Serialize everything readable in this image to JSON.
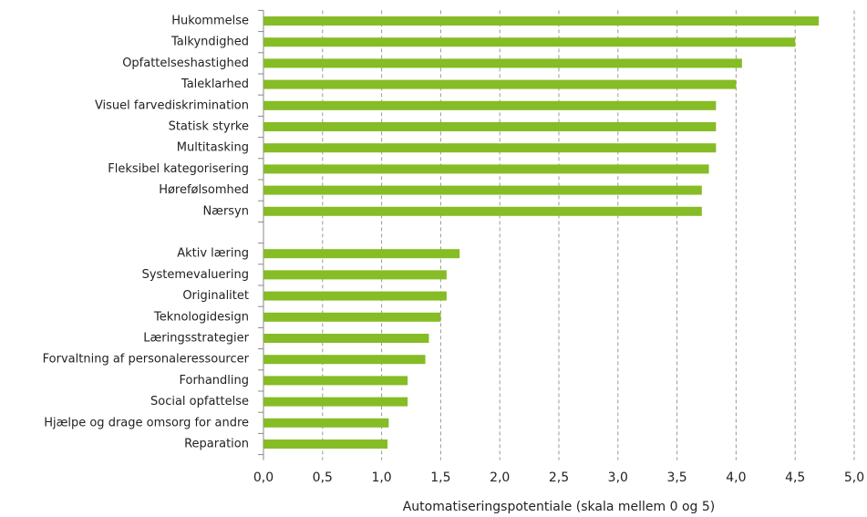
{
  "chart_data": {
    "type": "barh",
    "categories": [
      "Hukommelse",
      "Talkyndighed",
      "Opfattelseshastighed",
      "Taleklarhed",
      "Visuel farvediskrimination",
      "Statisk styrke",
      "Multitasking",
      "Fleksibel kategorisering",
      "Hørefølsomhed",
      "Nærsyn",
      null,
      "Aktiv læring",
      "Systemevaluering",
      "Originalitet",
      "Teknologidesign",
      "Læringsstrategier",
      "Forvaltning af personaleressourcer",
      "Forhandling",
      "Social opfattelse",
      "Hjælpe og drage omsorg for andre",
      "Reparation"
    ],
    "values": [
      4.7,
      4.5,
      4.05,
      4.0,
      3.83,
      3.83,
      3.83,
      3.77,
      3.71,
      3.71,
      null,
      1.66,
      1.55,
      1.55,
      1.5,
      1.4,
      1.37,
      1.22,
      1.22,
      1.06,
      1.05
    ],
    "color": "#86bc25",
    "xlabel": "Automatiseringspotentiale (skala mellem 0 og 5)",
    "xlim": [
      0,
      5
    ],
    "xticks": [
      {
        "value": 0,
        "label": "0,0"
      },
      {
        "value": 0.5,
        "label": "0,5"
      },
      {
        "value": 1,
        "label": "1,0"
      },
      {
        "value": 1.5,
        "label": "1,5"
      },
      {
        "value": 2,
        "label": "2,0"
      },
      {
        "value": 2.5,
        "label": "2,5"
      },
      {
        "value": 3,
        "label": "3,0"
      },
      {
        "value": 3.5,
        "label": "3,5"
      },
      {
        "value": 4,
        "label": "4,0"
      },
      {
        "value": 4.5,
        "label": "4,5"
      },
      {
        "value": 5,
        "label": "5,0"
      }
    ],
    "grid": true
  }
}
